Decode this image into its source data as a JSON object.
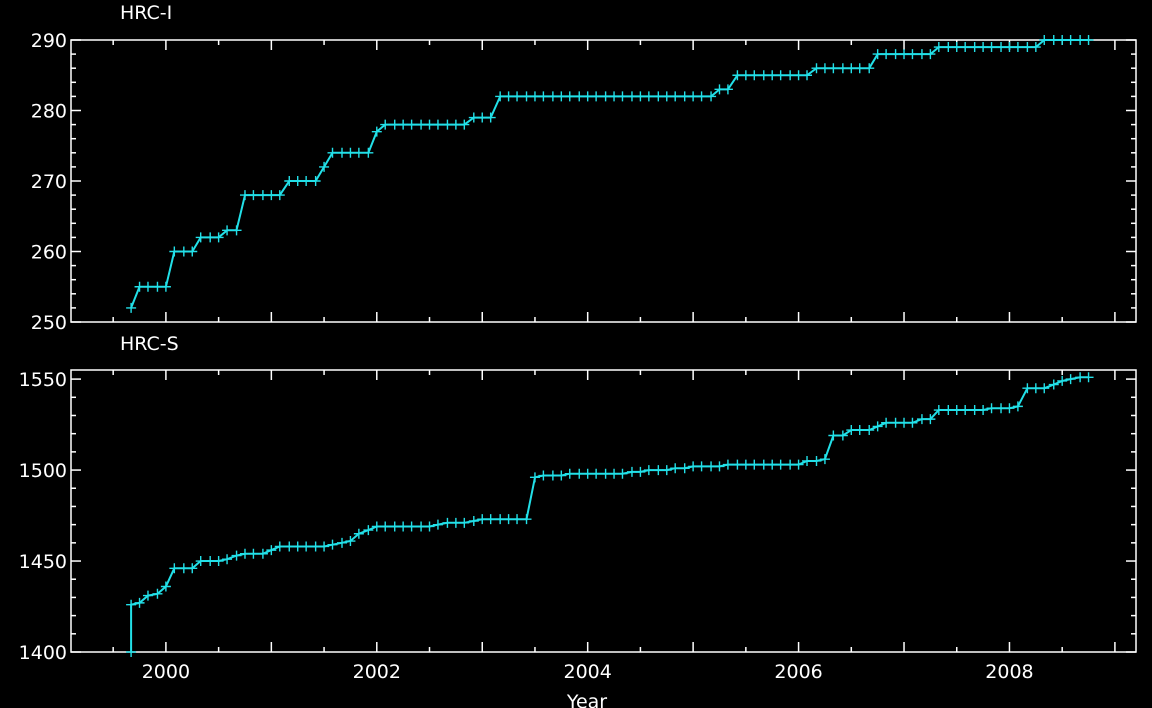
{
  "colors": {
    "background": "#000000",
    "axes": "#ffffff",
    "series": "#22e0e8"
  },
  "chart_data": [
    {
      "type": "line",
      "title": "HRC-I",
      "xlabel": "",
      "ylabel": "",
      "xlim": [
        1999.1,
        2009.2
      ],
      "ylim": [
        250,
        290
      ],
      "xticks": [
        2000,
        2002,
        2004,
        2006,
        2008
      ],
      "yticks": [
        250,
        260,
        270,
        280,
        290
      ],
      "marker": "plus",
      "grid": false,
      "series": [
        {
          "x": [
            1999.67,
            1999.75,
            1999.83,
            1999.92,
            2000.0,
            2000.08,
            2000.17,
            2000.25,
            2000.33,
            2000.42,
            2000.5,
            2000.58,
            2000.67,
            2000.75,
            2000.83,
            2000.92,
            2001.0,
            2001.08,
            2001.17,
            2001.25,
            2001.33,
            2001.42,
            2001.5,
            2001.58,
            2001.67,
            2001.75,
            2001.83,
            2001.92,
            2002.0,
            2002.08,
            2002.17,
            2002.25,
            2002.33,
            2002.42,
            2002.5,
            2002.58,
            2002.67,
            2002.75,
            2002.83,
            2002.92,
            2003.0,
            2003.08,
            2003.17,
            2003.25,
            2003.33,
            2003.42,
            2003.5,
            2003.58,
            2003.67,
            2003.75,
            2003.83,
            2003.92,
            2004.0,
            2004.08,
            2004.17,
            2004.25,
            2004.33,
            2004.42,
            2004.5,
            2004.58,
            2004.67,
            2004.75,
            2004.83,
            2004.92,
            2005.0,
            2005.08,
            2005.17,
            2005.25,
            2005.33,
            2005.42,
            2005.5,
            2005.58,
            2005.67,
            2005.75,
            2005.83,
            2005.92,
            2006.0,
            2006.08,
            2006.17,
            2006.25,
            2006.33,
            2006.42,
            2006.5,
            2006.58,
            2006.67,
            2006.75,
            2006.83,
            2006.92,
            2007.0,
            2007.08,
            2007.17,
            2007.25,
            2007.33,
            2007.42,
            2007.5,
            2007.58,
            2007.67,
            2007.75,
            2007.83,
            2007.92,
            2008.0,
            2008.08,
            2008.17,
            2008.25,
            2008.33,
            2008.42,
            2008.5,
            2008.58,
            2008.67,
            2008.75
          ],
          "y": [
            252,
            255,
            255,
            255,
            255,
            260,
            260,
            260,
            262,
            262,
            262,
            263,
            263,
            268,
            268,
            268,
            268,
            268,
            270,
            270,
            270,
            270,
            272,
            274,
            274,
            274,
            274,
            274,
            277,
            278,
            278,
            278,
            278,
            278,
            278,
            278,
            278,
            278,
            278,
            279,
            279,
            279,
            282,
            282,
            282,
            282,
            282,
            282,
            282,
            282,
            282,
            282,
            282,
            282,
            282,
            282,
            282,
            282,
            282,
            282,
            282,
            282,
            282,
            282,
            282,
            282,
            282,
            283,
            283,
            285,
            285,
            285,
            285,
            285,
            285,
            285,
            285,
            285,
            286,
            286,
            286,
            286,
            286,
            286,
            286,
            288,
            288,
            288,
            288,
            288,
            288,
            288,
            289,
            289,
            289,
            289,
            289,
            289,
            289,
            289,
            289,
            289,
            289,
            289,
            290,
            290,
            290,
            290,
            290,
            290
          ]
        }
      ]
    },
    {
      "type": "line",
      "title": "HRC-S",
      "xlabel": "Year",
      "ylabel": "",
      "xlim": [
        1999.1,
        2009.2
      ],
      "ylim": [
        1400,
        1555
      ],
      "xticks": [
        2000,
        2002,
        2004,
        2006,
        2008
      ],
      "yticks": [
        1400,
        1450,
        1500,
        1550
      ],
      "marker": "plus",
      "grid": false,
      "series": [
        {
          "x": [
            1999.67,
            1999.67,
            1999.75,
            1999.83,
            1999.92,
            2000.0,
            2000.08,
            2000.17,
            2000.25,
            2000.33,
            2000.42,
            2000.5,
            2000.58,
            2000.67,
            2000.75,
            2000.83,
            2000.92,
            2001.0,
            2001.08,
            2001.17,
            2001.25,
            2001.33,
            2001.42,
            2001.5,
            2001.58,
            2001.67,
            2001.75,
            2001.83,
            2001.92,
            2002.0,
            2002.08,
            2002.17,
            2002.25,
            2002.33,
            2002.42,
            2002.5,
            2002.58,
            2002.67,
            2002.75,
            2002.83,
            2002.92,
            2003.0,
            2003.08,
            2003.17,
            2003.25,
            2003.33,
            2003.42,
            2003.5,
            2003.58,
            2003.67,
            2003.75,
            2003.83,
            2003.92,
            2004.0,
            2004.08,
            2004.17,
            2004.25,
            2004.33,
            2004.42,
            2004.5,
            2004.58,
            2004.67,
            2004.75,
            2004.83,
            2004.92,
            2005.0,
            2005.08,
            2005.17,
            2005.25,
            2005.33,
            2005.42,
            2005.5,
            2005.58,
            2005.67,
            2005.75,
            2005.83,
            2005.92,
            2006.0,
            2006.08,
            2006.17,
            2006.25,
            2006.33,
            2006.42,
            2006.5,
            2006.58,
            2006.67,
            2006.75,
            2006.83,
            2006.92,
            2007.0,
            2007.08,
            2007.17,
            2007.25,
            2007.33,
            2007.42,
            2007.5,
            2007.58,
            2007.67,
            2007.75,
            2007.83,
            2007.92,
            2008.0,
            2008.08,
            2008.17,
            2008.25,
            2008.33,
            2008.42,
            2008.5,
            2008.58,
            2008.67,
            2008.75
          ],
          "y": [
            1400,
            1426,
            1427,
            1431,
            1432,
            1436,
            1446,
            1446,
            1446,
            1450,
            1450,
            1450,
            1451,
            1453,
            1454,
            1454,
            1454,
            1456,
            1458,
            1458,
            1458,
            1458,
            1458,
            1458,
            1459,
            1460,
            1461,
            1465,
            1467,
            1469,
            1469,
            1469,
            1469,
            1469,
            1469,
            1469,
            1470,
            1471,
            1471,
            1471,
            1472,
            1473,
            1473,
            1473,
            1473,
            1473,
            1473,
            1496,
            1497,
            1497,
            1497,
            1498,
            1498,
            1498,
            1498,
            1498,
            1498,
            1498,
            1499,
            1499,
            1500,
            1500,
            1500,
            1501,
            1501,
            1502,
            1502,
            1502,
            1502,
            1503,
            1503,
            1503,
            1503,
            1503,
            1503,
            1503,
            1503,
            1503,
            1505,
            1505,
            1506,
            1519,
            1519,
            1522,
            1522,
            1522,
            1524,
            1526,
            1526,
            1526,
            1526,
            1528,
            1528,
            1533,
            1533,
            1533,
            1533,
            1533,
            1533,
            1534,
            1534,
            1534,
            1535,
            1545,
            1545,
            1545,
            1547,
            1549,
            1550,
            1551,
            1551
          ]
        }
      ]
    }
  ]
}
